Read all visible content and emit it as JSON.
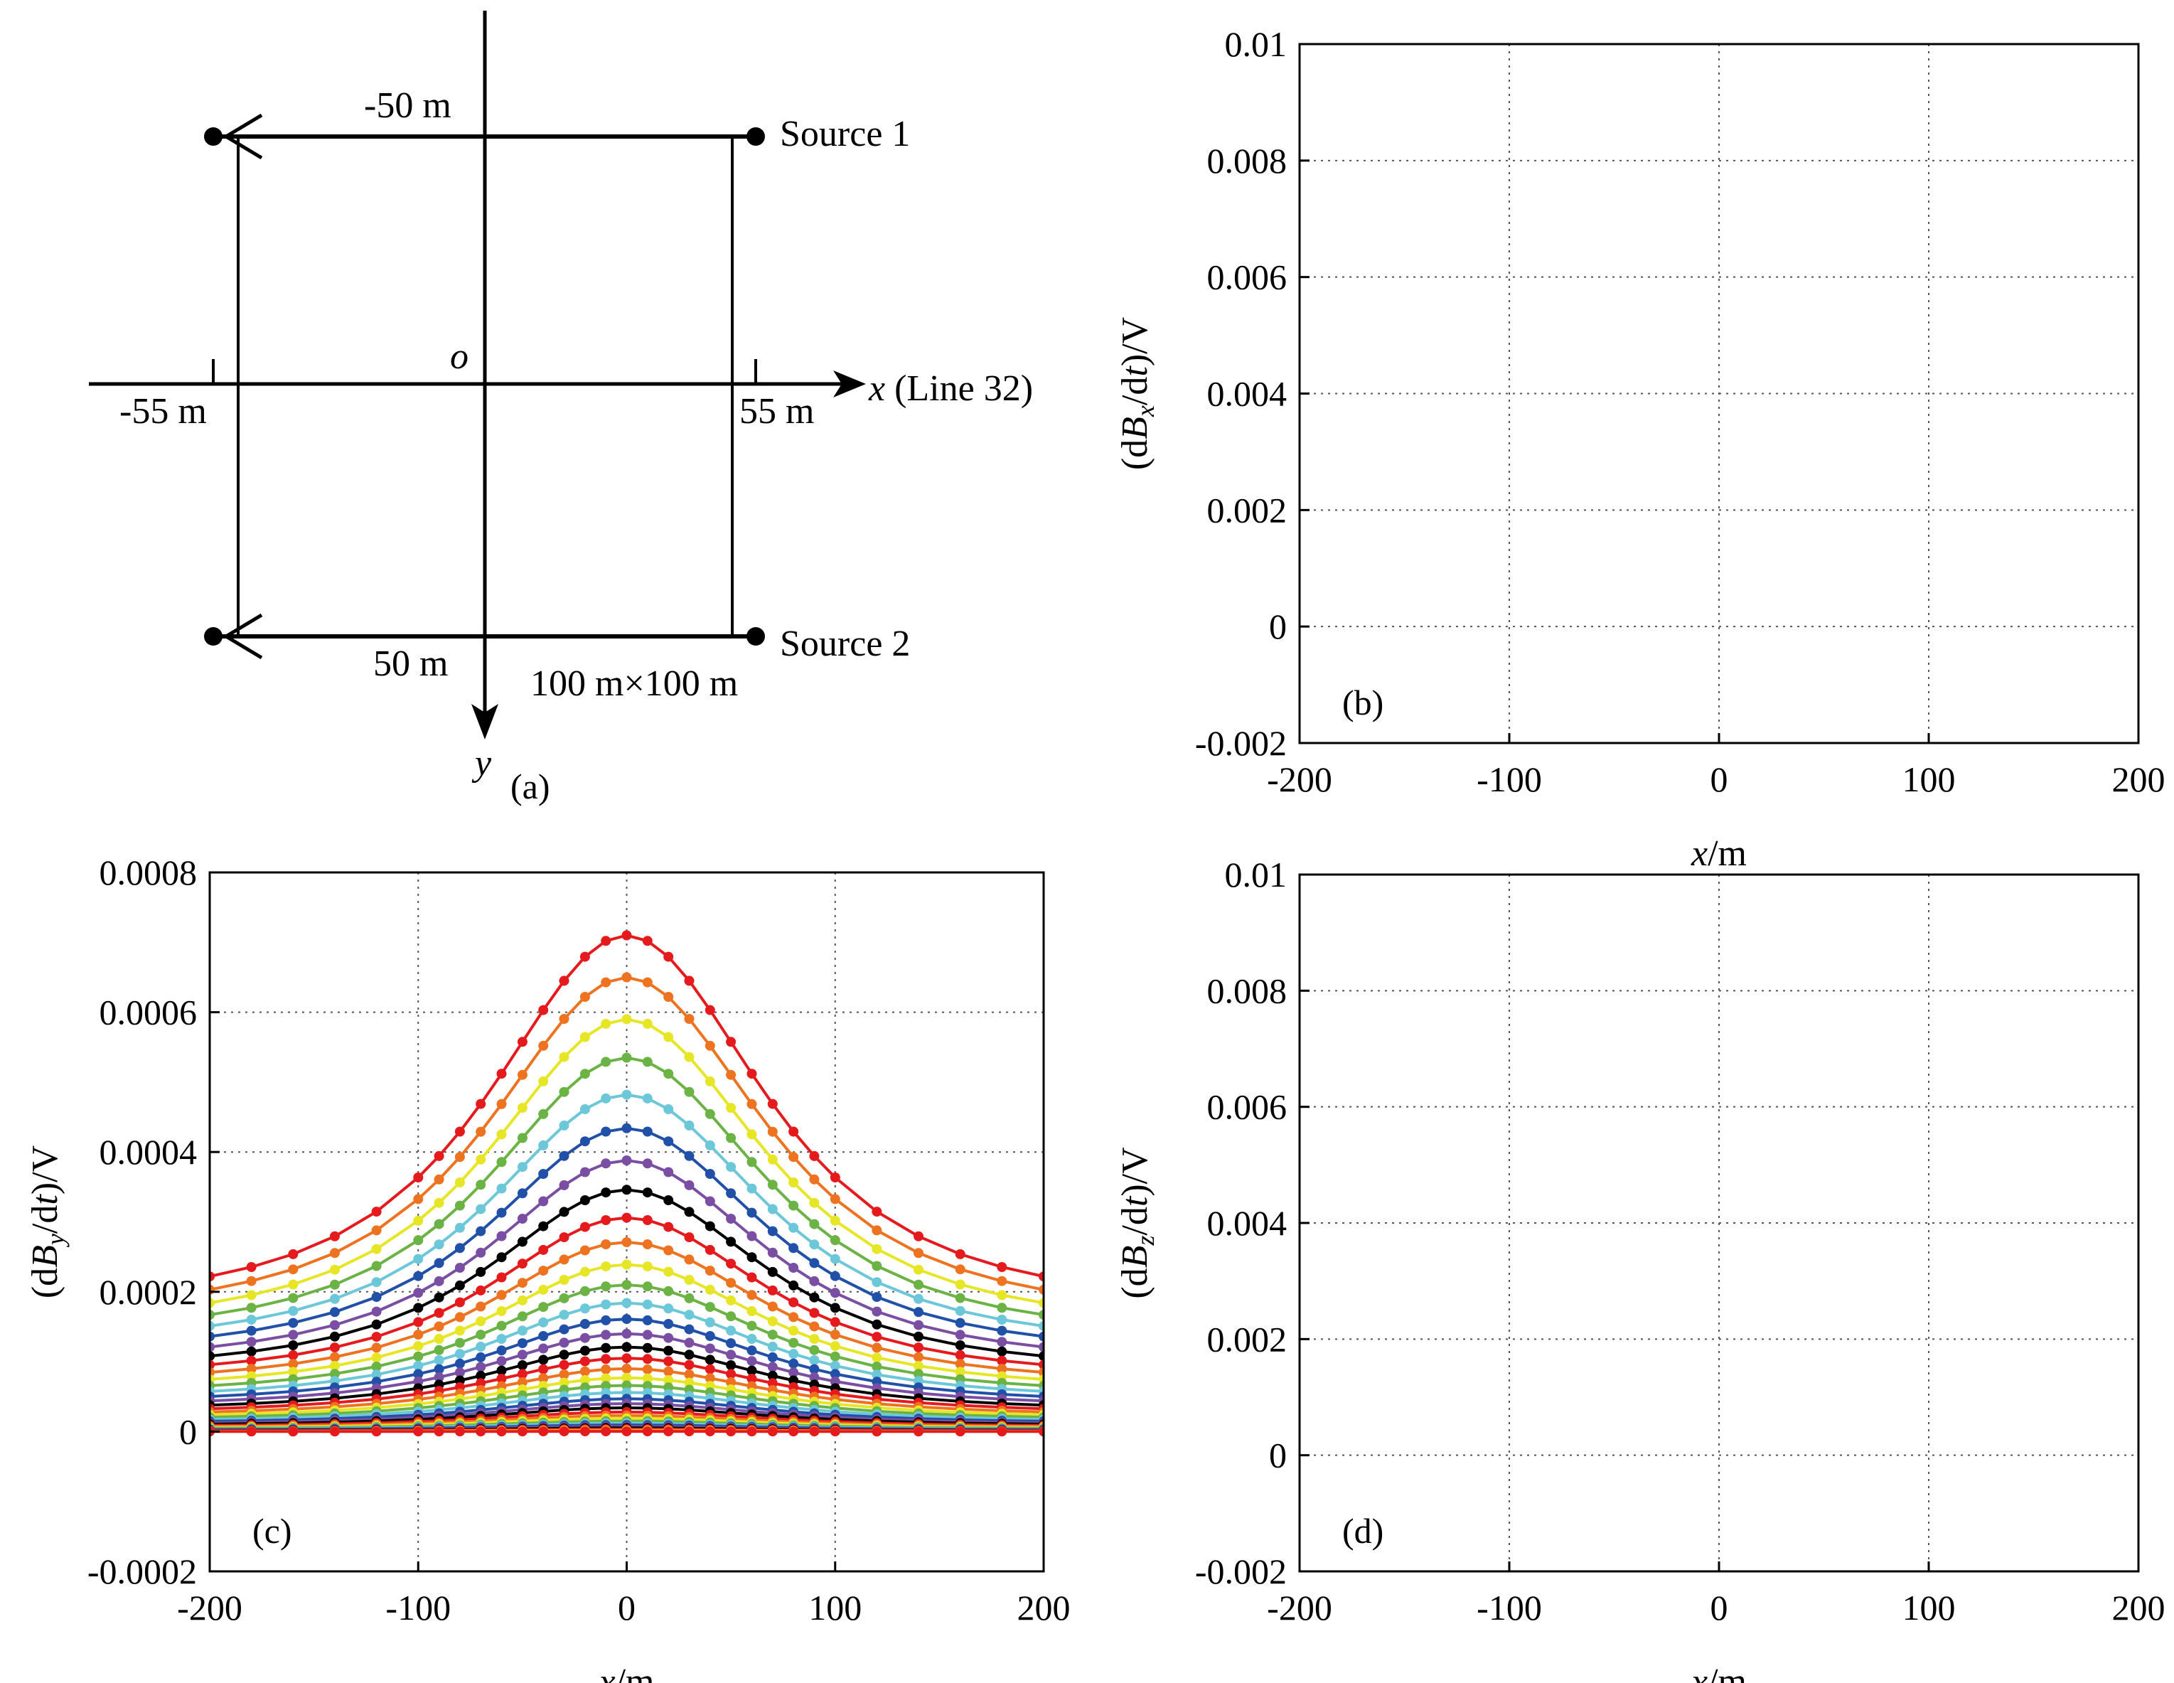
{
  "panel_a": {
    "label": "(a)",
    "x_axis_label": "x",
    "x_axis_suffix": " (Line 32)",
    "y_axis_label": "y",
    "origin_label": "o",
    "left_mark": "-55 m",
    "right_mark": "55 m",
    "top_mark": "-50 m",
    "bottom_mark": "50 m",
    "source1": "Source 1",
    "source2": "Source 2",
    "loop_size": "100 m×100 m"
  },
  "chart_data": [
    {
      "id": "b",
      "type": "line",
      "panel_label": "(b)",
      "xlabel": "x/m",
      "ylabel": "(dBx/dt)/V",
      "xlim": [
        -200,
        200
      ],
      "ylim": [
        -0.002,
        0.01
      ],
      "xticks": [
        -200,
        -100,
        0,
        100,
        200
      ],
      "xtick_labels": [
        "-200",
        "-100",
        "0",
        "100",
        "200"
      ],
      "yticks": [
        -0.002,
        0,
        0.002,
        0.004,
        0.006,
        0.008,
        0.01
      ],
      "ytick_labels": [
        "-0.002",
        "0",
        "0.002",
        "0.004",
        "0.006",
        "0.008",
        "0.01"
      ],
      "grid": true,
      "series": []
    },
    {
      "id": "c",
      "type": "line",
      "panel_label": "(c)",
      "xlabel": "x/m",
      "ylabel": "(dBy/dt)/V",
      "xlim": [
        -200,
        200
      ],
      "ylim": [
        -0.0002,
        0.0008
      ],
      "xticks": [
        -200,
        -100,
        0,
        100,
        200
      ],
      "xtick_labels": [
        "-200",
        "-100",
        "0",
        "100",
        "200"
      ],
      "yticks": [
        -0.0002,
        0,
        0.0002,
        0.0004,
        0.0006,
        0.0008
      ],
      "ytick_labels": [
        "-0.0002",
        "0",
        "0.0002",
        "0.0004",
        "0.0006",
        "0.0008"
      ],
      "grid": true,
      "x": [
        -200,
        -180,
        -160,
        -140,
        -120,
        -100,
        -90,
        -80,
        -70,
        -60,
        -50,
        -40,
        -30,
        -20,
        -10,
        0,
        10,
        20,
        30,
        40,
        50,
        60,
        70,
        80,
        90,
        100,
        120,
        140,
        160,
        180,
        200
      ],
      "profile_shape": "each curve follows y(x) = base + (peak - base) * g(x), g(x) = 1/(1 + (x/100)^2)^1.5",
      "edge_ratio": 0.3,
      "series": [
        {
          "peak": 0.00071,
          "base": 0.000222,
          "color": "#e41a1c"
        },
        {
          "peak": 0.00065,
          "base": 0.000203,
          "color": "#ee7320"
        },
        {
          "peak": 0.00059,
          "base": 0.000184,
          "color": "#e6e626"
        },
        {
          "peak": 0.000535,
          "base": 0.000167,
          "color": "#6ab344"
        },
        {
          "peak": 0.000482,
          "base": 0.000151,
          "color": "#6cc7d8"
        },
        {
          "peak": 0.000434,
          "base": 0.000136,
          "color": "#2050a8"
        },
        {
          "peak": 0.000388,
          "base": 0.000121,
          "color": "#7a4ea3"
        },
        {
          "peak": 0.000346,
          "base": 0.000108,
          "color": "#000000"
        },
        {
          "peak": 0.000306,
          "base": 9.56e-05,
          "color": "#e41a1c"
        },
        {
          "peak": 0.000271,
          "base": 8.47e-05,
          "color": "#ee7320"
        },
        {
          "peak": 0.000239,
          "base": 7.47e-05,
          "color": "#e6e626"
        },
        {
          "peak": 0.00021,
          "base": 6.56e-05,
          "color": "#6ab344"
        },
        {
          "peak": 0.000184,
          "base": 5.75e-05,
          "color": "#6cc7d8"
        },
        {
          "peak": 0.000161,
          "base": 5.03e-05,
          "color": "#2050a8"
        },
        {
          "peak": 0.00014,
          "base": 4.38e-05,
          "color": "#7a4ea3"
        },
        {
          "peak": 0.000121,
          "base": 3.78e-05,
          "color": "#000000"
        },
        {
          "peak": 0.000105,
          "base": 3.28e-05,
          "color": "#e41a1c"
        },
        {
          "peak": 9e-05,
          "base": 2.81e-05,
          "color": "#ee7320"
        },
        {
          "peak": 7.7e-05,
          "base": 2.41e-05,
          "color": "#e6e626"
        },
        {
          "peak": 6.6e-05,
          "base": 2.06e-05,
          "color": "#6ab344"
        },
        {
          "peak": 5.6e-05,
          "base": 1.75e-05,
          "color": "#6cc7d8"
        },
        {
          "peak": 4.7e-05,
          "base": 1.47e-05,
          "color": "#2050a8"
        },
        {
          "peak": 4e-05,
          "base": 1.25e-05,
          "color": "#7a4ea3"
        },
        {
          "peak": 3.4e-05,
          "base": 1.06e-05,
          "color": "#000000"
        },
        {
          "peak": 2.8e-05,
          "base": 8.75e-06,
          "color": "#e41a1c"
        },
        {
          "peak": 2.3e-05,
          "base": 7.19e-06,
          "color": "#ee7320"
        },
        {
          "peak": 1.9e-05,
          "base": 5.94e-06,
          "color": "#e6e626"
        },
        {
          "peak": 1.5e-05,
          "base": 4.69e-06,
          "color": "#6ab344"
        },
        {
          "peak": 1.2e-05,
          "base": 3.75e-06,
          "color": "#6cc7d8"
        },
        {
          "peak": 9.5e-06,
          "base": 2.97e-06,
          "color": "#2050a8"
        },
        {
          "peak": 7.2e-06,
          "base": 2.25e-06,
          "color": "#7a4ea3"
        },
        {
          "peak": 5.2e-06,
          "base": 1.63e-06,
          "color": "#000000"
        },
        {
          "peak": 3.5e-06,
          "base": 1.09e-06,
          "color": "#e41a1c"
        },
        {
          "peak": 2e-06,
          "base": 6.25e-07,
          "color": "#ee7320"
        },
        {
          "peak": 1e-06,
          "base": 3e-07,
          "color": "#e6e626"
        },
        {
          "peak": 3e-07,
          "base": 1e-07,
          "color": "#e41a1c"
        }
      ]
    },
    {
      "id": "d",
      "type": "line",
      "panel_label": "(d)",
      "xlabel": "x/m",
      "ylabel": "(dBz/dt)/V",
      "xlim": [
        -200,
        200
      ],
      "ylim": [
        -0.002,
        0.01
      ],
      "xticks": [
        -200,
        -100,
        0,
        100,
        200
      ],
      "xtick_labels": [
        "-200",
        "-100",
        "0",
        "100",
        "200"
      ],
      "yticks": [
        -0.002,
        0,
        0.002,
        0.004,
        0.006,
        0.008,
        0.01
      ],
      "ytick_labels": [
        "-0.002",
        "0",
        "0.002",
        "0.004",
        "0.006",
        "0.008",
        "0.01"
      ],
      "grid": true,
      "series": []
    }
  ]
}
